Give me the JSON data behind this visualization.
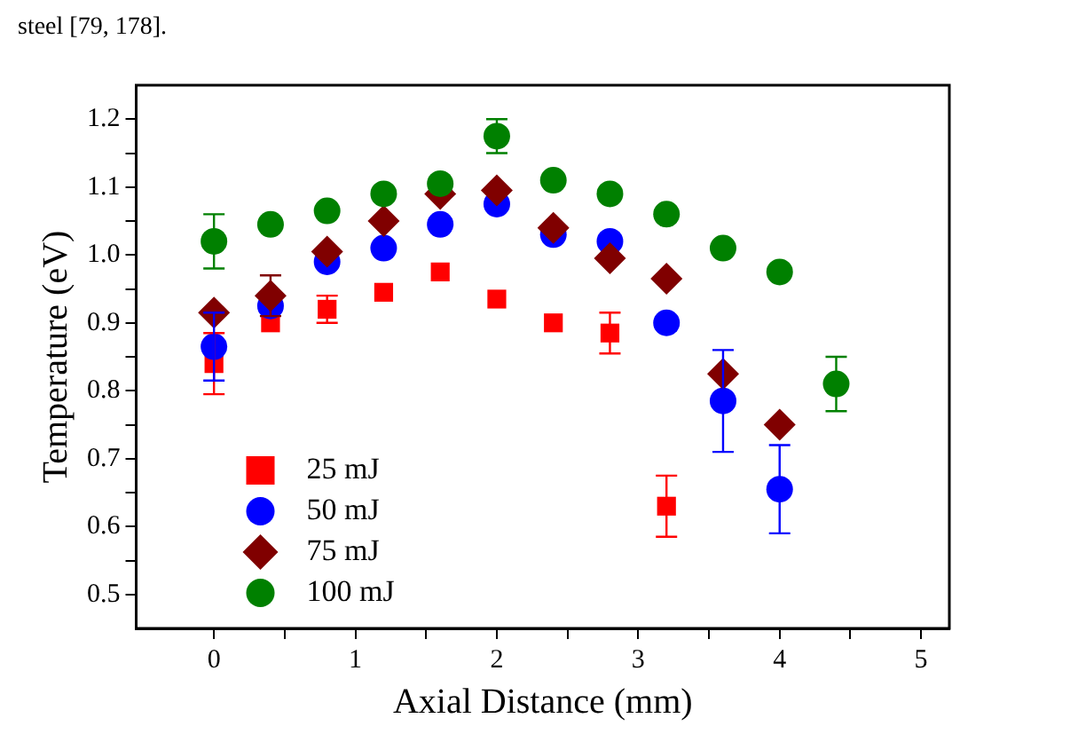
{
  "chart_data": {
    "type": "scatter",
    "xlabel": "Axial Distance (mm)",
    "ylabel": "Temperature (eV)",
    "annotations": [
      "steel [79, 178]."
    ],
    "x": [
      0,
      0.4,
      0.8,
      1.2,
      1.6,
      2.0,
      2.4,
      2.8,
      3.2,
      3.6,
      4.0,
      4.4
    ],
    "xlim": [
      -0.55,
      5.2
    ],
    "xticks": [
      0,
      {
        "value": 0.5,
        "label": null
      },
      1,
      {
        "value": 1.5,
        "label": null
      },
      2,
      {
        "value": 2.5,
        "label": null
      },
      3,
      {
        "value": 3.5,
        "label": null
      },
      4,
      {
        "value": 4.5,
        "label": null
      },
      5
    ],
    "ylim": [
      0.45,
      1.25
    ],
    "yticks": [
      0.5,
      {
        "value": 0.55,
        "label": null
      },
      0.6,
      {
        "value": 0.65,
        "label": null
      },
      0.7,
      {
        "value": 0.75,
        "label": null
      },
      0.8,
      {
        "value": 0.85,
        "label": null
      },
      0.9,
      {
        "value": 0.95,
        "label": null
      },
      {
        "value": 1,
        "label": "1.0"
      },
      {
        "value": 1.05,
        "label": null
      },
      1.1,
      {
        "value": 1.15,
        "label": null
      },
      1.2
    ],
    "grid": false,
    "legend": "bottom left",
    "series": [
      {
        "name": "25 mJ",
        "color": "#ff0000",
        "marker": "square",
        "values": [
          0.84,
          0.9,
          0.92,
          0.945,
          0.975,
          0.935,
          0.9,
          0.885,
          0.63,
          null,
          null,
          null
        ],
        "errors": [
          0.045,
          null,
          0.02,
          null,
          null,
          null,
          null,
          0.03,
          0.045,
          null,
          null,
          null
        ]
      },
      {
        "name": "50 mJ",
        "color": "#0000ff",
        "marker": "circle",
        "values": [
          0.865,
          0.925,
          0.99,
          1.01,
          1.045,
          1.075,
          1.03,
          1.02,
          0.9,
          0.785,
          0.655,
          null
        ],
        "errors": [
          0.05,
          null,
          null,
          null,
          null,
          null,
          null,
          null,
          null,
          0.075,
          0.065,
          null
        ]
      },
      {
        "name": "75 mJ",
        "color": "#800000",
        "marker": "diamond",
        "values": [
          0.915,
          0.94,
          1.005,
          1.05,
          1.09,
          1.095,
          1.04,
          0.995,
          0.965,
          0.825,
          0.75,
          null
        ],
        "errors": [
          null,
          0.03,
          null,
          null,
          null,
          null,
          null,
          null,
          null,
          null,
          null,
          null
        ]
      },
      {
        "name": "100 mJ",
        "color": "#008000",
        "marker": "circle",
        "values": [
          1.02,
          1.045,
          1.065,
          1.09,
          1.105,
          1.175,
          1.11,
          1.09,
          1.06,
          1.01,
          0.975,
          0.81
        ],
        "errors": [
          0.04,
          null,
          null,
          null,
          null,
          0.025,
          null,
          null,
          null,
          null,
          null,
          0.04
        ]
      }
    ]
  }
}
